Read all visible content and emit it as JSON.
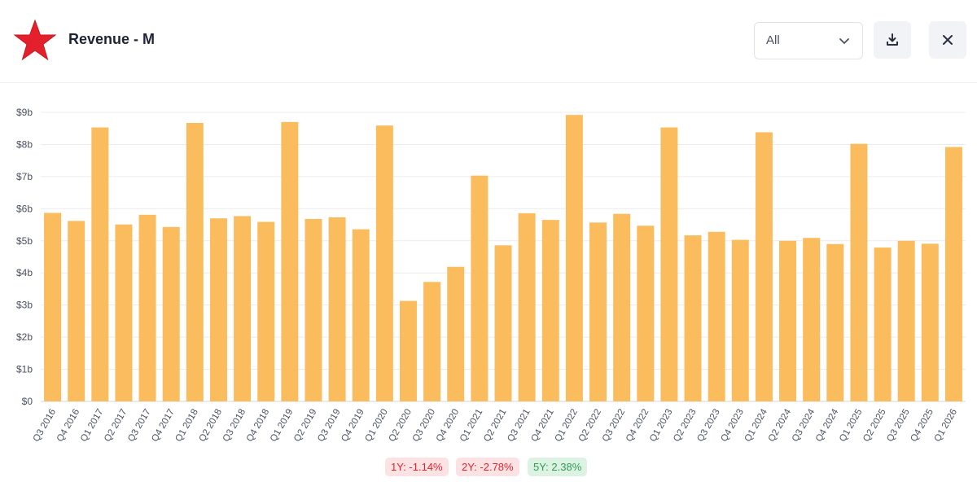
{
  "header": {
    "title": "Revenue - M",
    "period_select": {
      "value": "All"
    },
    "logo_icon": "red-star-icon",
    "download_icon": "download-icon",
    "close_icon": "close-icon"
  },
  "colors": {
    "bar": "#fbbc5e",
    "logo": "#e5202d",
    "negative": "#e0242f",
    "positive": "#2f9a52"
  },
  "chart_data": {
    "type": "bar",
    "categories": [
      "Q3 2016",
      "Q4 2016",
      "Q1 2017",
      "Q2 2017",
      "Q3 2017",
      "Q4 2017",
      "Q1 2018",
      "Q2 2018",
      "Q3 2018",
      "Q4 2018",
      "Q1 2019",
      "Q2 2019",
      "Q3 2019",
      "Q4 2019",
      "Q1 2020",
      "Q2 2020",
      "Q3 2020",
      "Q4 2020",
      "Q1 2021",
      "Q2 2021",
      "Q3 2021",
      "Q4 2021",
      "Q1 2022",
      "Q2 2022",
      "Q3 2022",
      "Q4 2022",
      "Q1 2023",
      "Q2 2023",
      "Q3 2023",
      "Q4 2023",
      "Q1 2024",
      "Q2 2024",
      "Q3 2024",
      "Q4 2024",
      "Q1 2025",
      "Q2 2025",
      "Q3 2025",
      "Q4 2025",
      "Q1 2026"
    ],
    "values": [
      5.87,
      5.62,
      8.53,
      5.51,
      5.81,
      5.43,
      8.67,
      5.7,
      5.77,
      5.59,
      8.7,
      5.68,
      5.73,
      5.36,
      8.59,
      3.13,
      3.72,
      4.19,
      7.03,
      4.86,
      5.86,
      5.65,
      8.92,
      5.57,
      5.84,
      5.47,
      8.53,
      5.17,
      5.28,
      5.03,
      8.38,
      5.0,
      5.09,
      4.9,
      8.02,
      4.79,
      5.0,
      4.91,
      7.92
    ],
    "yticks": [
      "$0",
      "$1b",
      "$2b",
      "$3b",
      "$4b",
      "$5b",
      "$6b",
      "$7b",
      "$8b",
      "$9b"
    ],
    "ylim": [
      0,
      9
    ],
    "grid": true,
    "legend": "none"
  },
  "badges": [
    {
      "label": "1Y: -1.14%",
      "tone": "neg"
    },
    {
      "label": "2Y: -2.78%",
      "tone": "neg"
    },
    {
      "label": "5Y: 2.38%",
      "tone": "pos"
    }
  ]
}
